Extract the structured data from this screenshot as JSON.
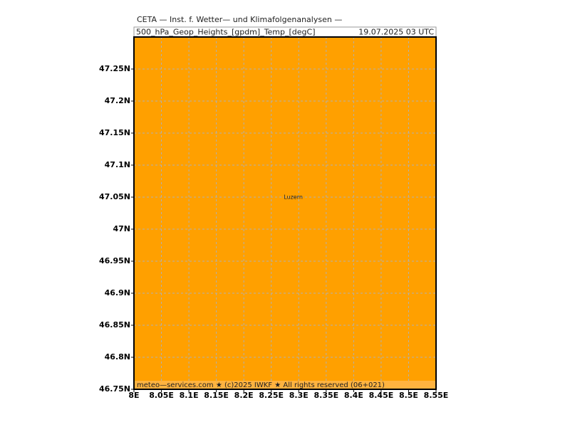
{
  "map": {
    "header": "CETA — Inst. f. Wetter— und Klimafolgenanalysen —",
    "field": "500_hPa_Geop_Heights_[gpdm]_Temp_[degC]",
    "time": "19.07.2025 03 UTC",
    "footer": "meteo—services.com ★ (c)2025 IWKF ★ All rights reserved (06+021)",
    "fill_color": "#ffa000",
    "grid": true,
    "xlim": [
      8,
      8.55
    ],
    "ylim": [
      46.75,
      47.3
    ],
    "xticks": [
      {
        "value": 8,
        "label": "8E"
      },
      {
        "value": 8.05,
        "label": "8.05E"
      },
      {
        "value": 8.1,
        "label": "8.1E"
      },
      {
        "value": 8.15,
        "label": "8.15E"
      },
      {
        "value": 8.2,
        "label": "8.2E"
      },
      {
        "value": 8.25,
        "label": "8.25E"
      },
      {
        "value": 8.3,
        "label": "8.3E"
      },
      {
        "value": 8.35,
        "label": "8.35E"
      },
      {
        "value": 8.4,
        "label": "8.4E"
      },
      {
        "value": 8.45,
        "label": "8.45E"
      },
      {
        "value": 8.5,
        "label": "8.5E"
      },
      {
        "value": 8.55,
        "label": "8.55E"
      }
    ],
    "yticks": [
      {
        "value": 46.75,
        "label": "46.75N"
      },
      {
        "value": 46.8,
        "label": "46.8N"
      },
      {
        "value": 46.85,
        "label": "46.85N"
      },
      {
        "value": 46.9,
        "label": "46.9N"
      },
      {
        "value": 46.95,
        "label": "46.95N"
      },
      {
        "value": 47,
        "label": "47N"
      },
      {
        "value": 47.05,
        "label": "47.05N"
      },
      {
        "value": 47.1,
        "label": "47.1N"
      },
      {
        "value": 47.15,
        "label": "47.15N"
      },
      {
        "value": 47.2,
        "label": "47.2N"
      },
      {
        "value": 47.25,
        "label": "47.25N"
      }
    ],
    "cities": [
      {
        "name": "Luzern",
        "lon": 8.29,
        "lat": 47.05
      }
    ]
  }
}
